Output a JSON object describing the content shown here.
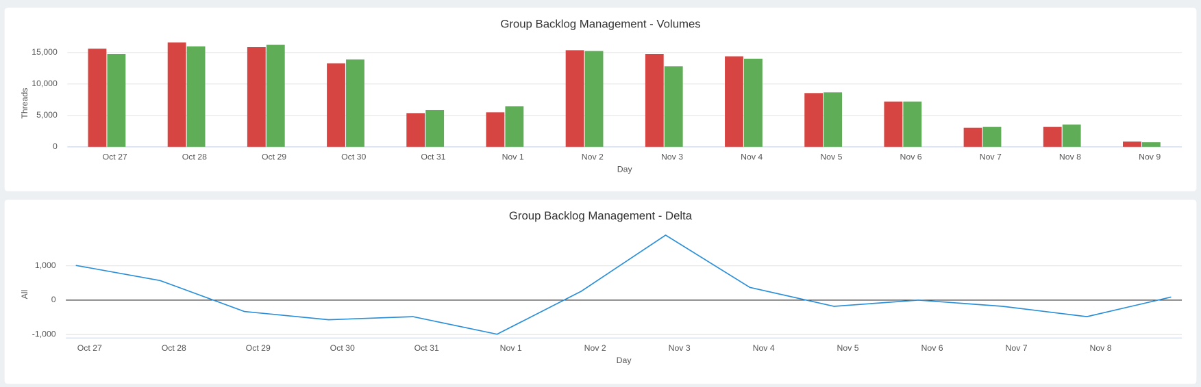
{
  "chart_data": [
    {
      "type": "bar",
      "title": "Group Backlog Management - Volumes",
      "y_label": "Threads",
      "x_label": "Day",
      "categories": [
        "Oct 27",
        "Oct 28",
        "Oct 29",
        "Oct 30",
        "Oct 31",
        "Nov 1",
        "Nov 2",
        "Nov 3",
        "Nov 4",
        "Nov 5",
        "Nov 6",
        "Nov 7",
        "Nov 8",
        "Nov 9"
      ],
      "series": [
        {
          "color": "#d64541",
          "values": [
            15610,
            16590,
            15850,
            13290,
            5370,
            5490,
            15370,
            14760,
            14390,
            8540,
            7200,
            3050,
            3170,
            850
          ]
        },
        {
          "color": "#5fad56",
          "values": [
            14760,
            15980,
            16220,
            13900,
            5850,
            6460,
            15240,
            12800,
            14020,
            8660,
            7200,
            3170,
            3540,
            730
          ]
        }
      ],
      "ylim": [
        0,
        17500
      ],
      "yticks": [
        0,
        {
          "value": 5000,
          "label": "5,000"
        },
        {
          "value": 10000,
          "label": "10,000"
        },
        {
          "value": 15000,
          "label": "15,000"
        }
      ],
      "grid": true
    },
    {
      "type": "line",
      "title": "Group Backlog Management - Delta",
      "y_label": "All",
      "x_label": "Day",
      "categories": [
        "Oct 27",
        "Oct 28",
        "Oct 29",
        "Oct 30",
        "Oct 31",
        "Nov 1",
        "Nov 2",
        "Nov 3",
        "Nov 4",
        "Nov 5",
        "Nov 6",
        "Nov 7",
        "Nov 8",
        null
      ],
      "series": [
        {
          "color": "#2b8fd8",
          "values": [
            1010,
            570,
            -330,
            -570,
            -480,
            -990,
            260,
            1890,
            370,
            -180,
            0,
            -180,
            -480,
            90
          ]
        }
      ],
      "ylim": [
        -1100,
        2100
      ],
      "yticks": [
        {
          "value": -1000,
          "label": "-1,000"
        },
        0,
        {
          "value": 1000,
          "label": "1,000"
        }
      ],
      "grid": true
    }
  ]
}
